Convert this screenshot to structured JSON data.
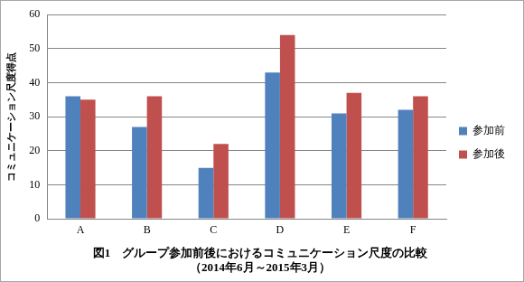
{
  "chart_data": {
    "type": "bar",
    "title": "図1　グループ参加前後におけるコミュニケーション尺度の比較",
    "subtitle": "（2014年6月～2015年3月）",
    "y_label": "コミュニケーション尺度得点",
    "categories": [
      "A",
      "B",
      "C",
      "D",
      "E",
      "F"
    ],
    "series": [
      {
        "name": "参加前",
        "color": "#4f81bd",
        "values": [
          36,
          27,
          15,
          43,
          31,
          32
        ]
      },
      {
        "name": "参加後",
        "color": "#c0504d",
        "values": [
          35,
          36,
          22,
          54,
          37,
          36
        ]
      }
    ],
    "ylim": [
      0,
      60
    ],
    "yticks": [
      0,
      10,
      20,
      30,
      40,
      50,
      60
    ],
    "grid": true,
    "legend": "right"
  }
}
